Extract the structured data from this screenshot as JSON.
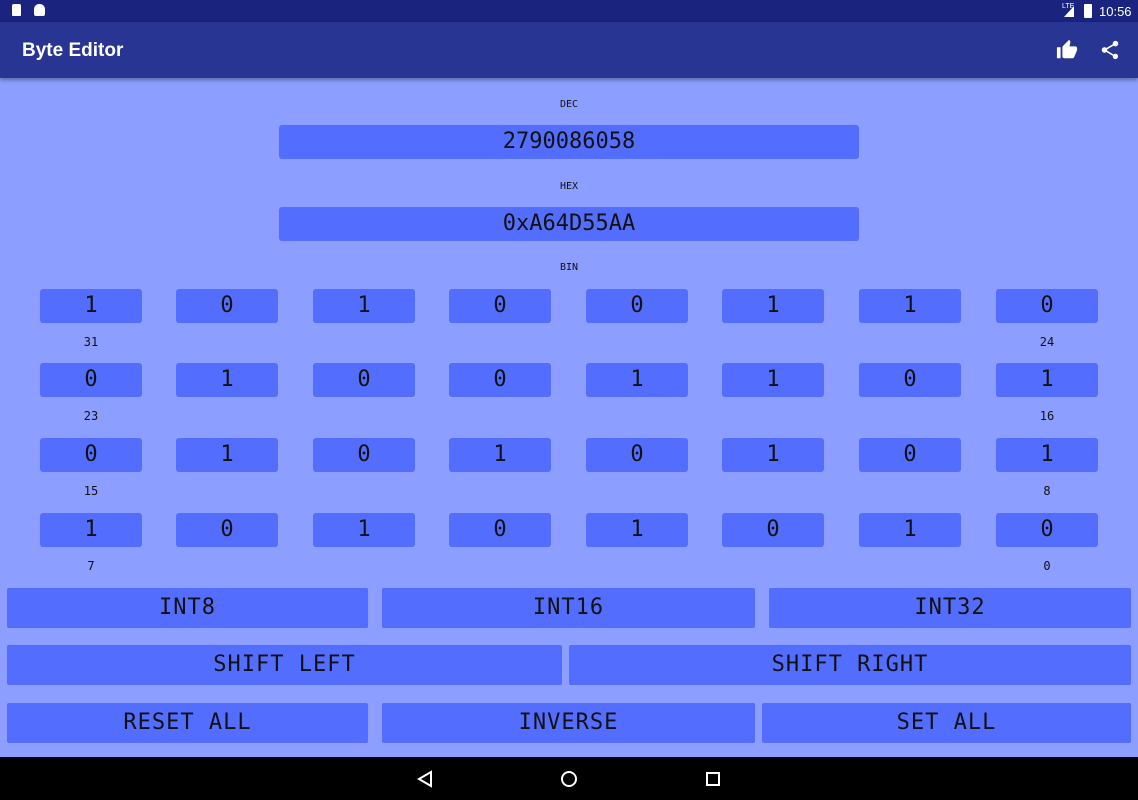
{
  "status": {
    "time": "10:56",
    "network": "LTE"
  },
  "appbar": {
    "title": "Byte Editor",
    "like_icon": "thumbs-up-icon",
    "share_icon": "share-icon"
  },
  "dec": {
    "label": "DEC",
    "value": "2790086058"
  },
  "hex": {
    "label": "HEX",
    "value": "0xA64D55AA"
  },
  "bin": {
    "label": "BIN",
    "rows": [
      {
        "bits": [
          "1",
          "0",
          "1",
          "0",
          "0",
          "1",
          "1",
          "0"
        ],
        "hi": "31",
        "lo": "24"
      },
      {
        "bits": [
          "0",
          "1",
          "0",
          "0",
          "1",
          "1",
          "0",
          "1"
        ],
        "hi": "23",
        "lo": "16"
      },
      {
        "bits": [
          "0",
          "1",
          "0",
          "1",
          "0",
          "1",
          "0",
          "1"
        ],
        "hi": "15",
        "lo": "8"
      },
      {
        "bits": [
          "1",
          "0",
          "1",
          "0",
          "1",
          "0",
          "1",
          "0"
        ],
        "hi": "7",
        "lo": "0"
      }
    ]
  },
  "buttons": {
    "int8": "INT8",
    "int16": "INT16",
    "int32": "INT32",
    "shift_left": "SHIFT LEFT",
    "shift_right": "SHIFT RIGHT",
    "reset_all": "RESET ALL",
    "inverse": "INVERSE",
    "set_all": "SET ALL"
  },
  "colors": {
    "background": "#8c9eff",
    "button": "#536dfe",
    "appbar": "#283593",
    "statusbar": "#1a237e"
  }
}
